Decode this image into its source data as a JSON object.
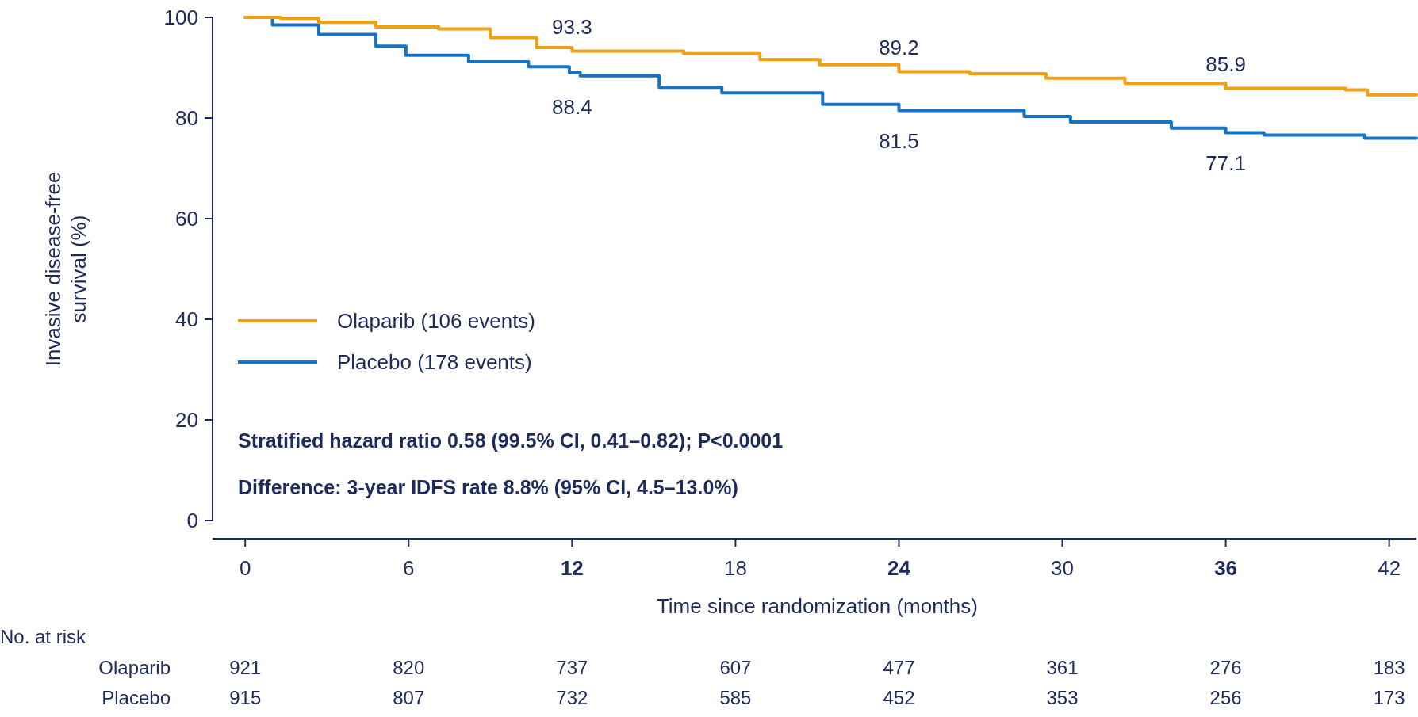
{
  "chart_data": {
    "type": "step",
    "xlabel": "Time since randomization (months)",
    "ylabel": "Invasive disease-free survival (%)",
    "xlim": [
      -1.2,
      43
    ],
    "xticks": [
      0,
      6,
      12,
      18,
      24,
      30,
      36,
      42
    ],
    "ylim": [
      0,
      100
    ],
    "yticks": [
      0,
      20,
      40,
      60,
      80,
      100
    ],
    "grid": false,
    "legend": "left",
    "marker": "none",
    "line_style": "solid",
    "series": [
      {
        "name": "Olaparib (106 events)",
        "color": "#f29f12",
        "x": [
          0,
          1.3,
          2.7,
          4.8,
          7.1,
          9.0,
          10.7,
          12,
          16.1,
          18.9,
          21.1,
          24,
          26.6,
          29.4,
          32.3,
          36,
          40.4,
          41.2,
          43
        ],
        "values": [
          100,
          99.8,
          99.0,
          98.1,
          97.7,
          96.0,
          94.0,
          93.3,
          92.8,
          91.6,
          90.6,
          89.2,
          88.8,
          87.9,
          86.9,
          85.9,
          85.6,
          84.6,
          84.6
        ]
      },
      {
        "name": "Placebo (178 events)",
        "color": "#1673c4",
        "x": [
          0,
          1.0,
          2.7,
          4.8,
          5.9,
          8.2,
          10.4,
          11.9,
          12.3,
          15.2,
          17.5,
          21.2,
          24,
          28.6,
          30.3,
          34,
          36,
          37.4,
          41.1,
          43
        ],
        "values": [
          100,
          98.5,
          96.6,
          94.3,
          92.5,
          91.2,
          90.2,
          89.0,
          88.4,
          86.1,
          85.0,
          82.7,
          81.5,
          80.3,
          79.2,
          78.0,
          77.1,
          76.6,
          76.0,
          76.0
        ]
      }
    ],
    "annotations": [
      {
        "text": "93.3",
        "x": 12,
        "y": 93.3
      },
      {
        "text": "88.4",
        "x": 12,
        "y": 88.4
      },
      {
        "text": "89.2",
        "x": 24,
        "y": 89.2
      },
      {
        "text": "81.5",
        "x": 24,
        "y": 81.5
      },
      {
        "text": "85.9",
        "x": 36,
        "y": 85.9
      },
      {
        "text": "77.1",
        "x": 36,
        "y": 77.1
      },
      "Stratified hazard ratio 0.58 (99.5% CI, 0.41–0.82); P<0.0001",
      "Difference: 3-year IDFS rate 8.8% (95% CI, 4.5–13.0%)",
      "No. at risk",
      "Olaparib",
      "921",
      "820",
      "737",
      "607",
      "477",
      "361",
      "276",
      "183",
      "Placebo",
      "915",
      "807",
      "732",
      "585",
      "452",
      "353",
      "256",
      "173"
    ]
  }
}
